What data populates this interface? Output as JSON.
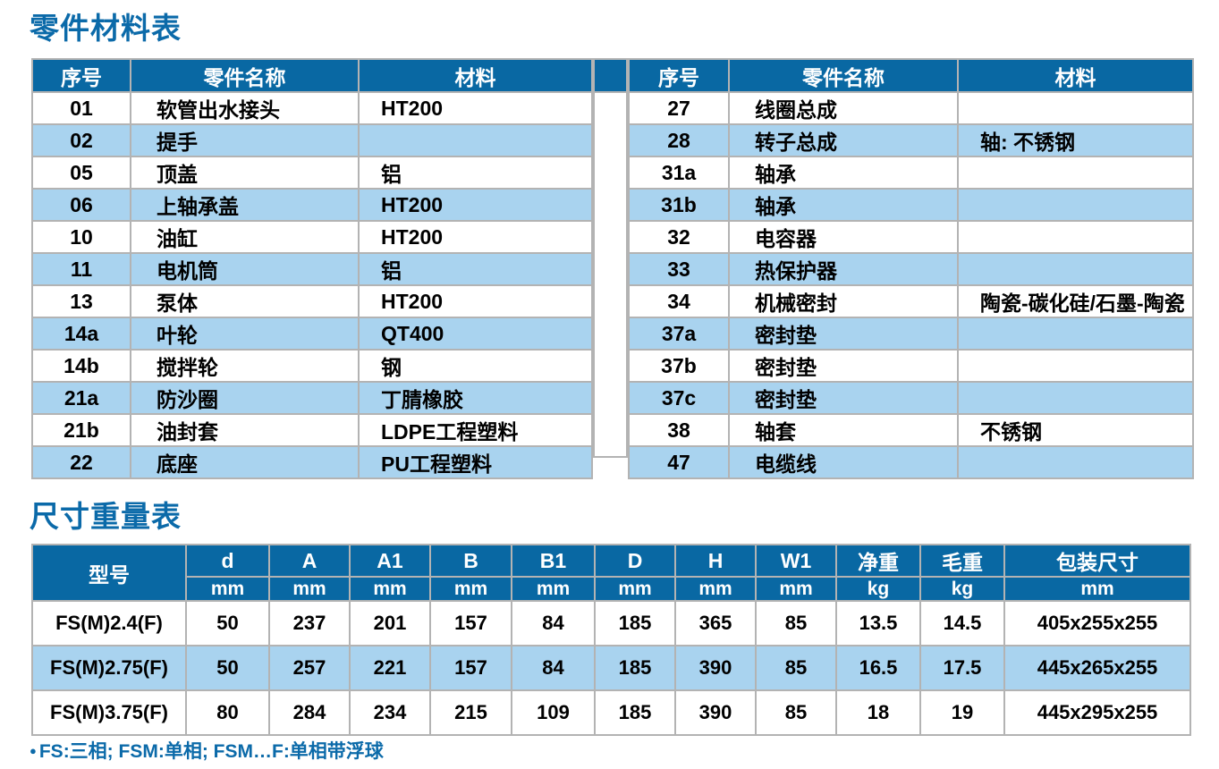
{
  "page": {
    "section1_title": "零件材料表",
    "section2_title": "尺寸重量表",
    "footnote_bullet": "●",
    "footnote_text": "FS:三相; FSM:单相; FSM…F:单相带浮球"
  },
  "colors": {
    "header_bg": "#0968a3",
    "alt_row_bg": "#a9d3ef",
    "title_text": "#0b6aa9",
    "border": "#b3b3b3"
  },
  "parts_table": {
    "headers": {
      "no": "序号",
      "name": "零件名称",
      "material": "材料"
    },
    "left_rows": [
      {
        "no": "01",
        "name": "软管出水接头",
        "material": "HT200"
      },
      {
        "no": "02",
        "name": "提手",
        "material": ""
      },
      {
        "no": "05",
        "name": "顶盖",
        "material": "铝"
      },
      {
        "no": "06",
        "name": "上轴承盖",
        "material": "HT200"
      },
      {
        "no": "10",
        "name": "油缸",
        "material": "HT200"
      },
      {
        "no": "11",
        "name": "电机筒",
        "material": "铝"
      },
      {
        "no": "13",
        "name": "泵体",
        "material": "HT200"
      },
      {
        "no": "14a",
        "name": "叶轮",
        "material": "QT400"
      },
      {
        "no": "14b",
        "name": "搅拌轮",
        "material": "钢"
      },
      {
        "no": "21a",
        "name": "防沙圈",
        "material": "丁腈橡胶"
      },
      {
        "no": "21b",
        "name": "油封套",
        "material": "LDPE工程塑料"
      },
      {
        "no": "22",
        "name": "底座",
        "material": "PU工程塑料"
      }
    ],
    "right_rows": [
      {
        "no": "27",
        "name": "线圈总成",
        "material": ""
      },
      {
        "no": "28",
        "name": "转子总成",
        "material": "轴: 不锈钢"
      },
      {
        "no": "31a",
        "name": "轴承",
        "material": ""
      },
      {
        "no": "31b",
        "name": "轴承",
        "material": ""
      },
      {
        "no": "32",
        "name": "电容器",
        "material": ""
      },
      {
        "no": "33",
        "name": "热保护器",
        "material": ""
      },
      {
        "no": "34",
        "name": "机械密封",
        "material": "陶瓷-碳化硅/石墨-陶瓷"
      },
      {
        "no": "37a",
        "name": "密封垫",
        "material": ""
      },
      {
        "no": "37b",
        "name": "密封垫",
        "material": ""
      },
      {
        "no": "37c",
        "name": "密封垫",
        "material": ""
      },
      {
        "no": "38",
        "name": "轴套",
        "material": "不锈钢"
      },
      {
        "no": "47",
        "name": "电缆线",
        "material": ""
      }
    ]
  },
  "dim_table": {
    "model_header": "型号",
    "columns": [
      {
        "label": "d",
        "unit": "mm"
      },
      {
        "label": "A",
        "unit": "mm"
      },
      {
        "label": "A1",
        "unit": "mm"
      },
      {
        "label": "B",
        "unit": "mm"
      },
      {
        "label": "B1",
        "unit": "mm"
      },
      {
        "label": "D",
        "unit": "mm"
      },
      {
        "label": "H",
        "unit": "mm"
      },
      {
        "label": "W1",
        "unit": "mm"
      },
      {
        "label": "净重",
        "unit": "kg"
      },
      {
        "label": "毛重",
        "unit": "kg"
      },
      {
        "label": "包装尺寸",
        "unit": "mm"
      }
    ],
    "rows": [
      {
        "model": "FS(M)2.4(F)",
        "values": [
          "50",
          "237",
          "201",
          "157",
          "84",
          "185",
          "365",
          "85",
          "13.5",
          "14.5",
          "405x255x255"
        ]
      },
      {
        "model": "FS(M)2.75(F)",
        "values": [
          "50",
          "257",
          "221",
          "157",
          "84",
          "185",
          "390",
          "85",
          "16.5",
          "17.5",
          "445x265x255"
        ]
      },
      {
        "model": "FS(M)3.75(F)",
        "values": [
          "80",
          "284",
          "234",
          "215",
          "109",
          "185",
          "390",
          "85",
          "18",
          "19",
          "445x295x255"
        ]
      }
    ]
  }
}
